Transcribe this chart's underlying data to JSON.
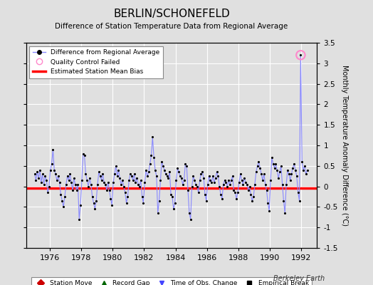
{
  "title": "BERLIN/SCHONEFELD",
  "subtitle": "Difference of Station Temperature Data from Regional Average",
  "ylabel": "Monthly Temperature Anomaly Difference (°C)",
  "xlim": [
    1974.5,
    1993.0
  ],
  "ylim": [
    -1.5,
    3.5
  ],
  "yticks": [
    -1.5,
    -1.0,
    -0.5,
    0.0,
    0.5,
    1.0,
    1.5,
    2.0,
    2.5,
    3.0,
    3.5
  ],
  "xticks": [
    1976,
    1978,
    1980,
    1982,
    1984,
    1986,
    1988,
    1990,
    1992
  ],
  "bias_level": -0.05,
  "line_color": "#8888ff",
  "bias_color": "#ff0000",
  "dot_color": "#000000",
  "qc_fail_x": 1991.958,
  "qc_fail_y": 3.2,
  "background_color": "#e0e0e0",
  "grid_color": "#ffffff",
  "watermark": "Berkeley Earth",
  "data_x": [
    1975.042,
    1975.125,
    1975.208,
    1975.292,
    1975.375,
    1975.458,
    1975.542,
    1975.625,
    1975.708,
    1975.792,
    1975.875,
    1975.958,
    1976.042,
    1976.125,
    1976.208,
    1976.292,
    1976.375,
    1976.458,
    1976.542,
    1976.625,
    1976.708,
    1976.792,
    1976.875,
    1976.958,
    1977.042,
    1977.125,
    1977.208,
    1977.292,
    1977.375,
    1977.458,
    1977.542,
    1977.625,
    1977.708,
    1977.792,
    1977.875,
    1977.958,
    1978.042,
    1978.125,
    1978.208,
    1978.292,
    1978.375,
    1978.458,
    1978.542,
    1978.625,
    1978.708,
    1978.792,
    1978.875,
    1978.958,
    1979.042,
    1979.125,
    1979.208,
    1979.292,
    1979.375,
    1979.458,
    1979.542,
    1979.625,
    1979.708,
    1979.792,
    1979.875,
    1979.958,
    1980.042,
    1980.125,
    1980.208,
    1980.292,
    1980.375,
    1980.458,
    1980.542,
    1980.625,
    1980.708,
    1980.792,
    1980.875,
    1980.958,
    1981.042,
    1981.125,
    1981.208,
    1981.292,
    1981.375,
    1981.458,
    1981.542,
    1981.625,
    1981.708,
    1981.792,
    1981.875,
    1981.958,
    1982.042,
    1982.125,
    1982.208,
    1982.292,
    1982.375,
    1982.458,
    1982.542,
    1982.625,
    1982.708,
    1982.792,
    1982.875,
    1982.958,
    1983.042,
    1983.125,
    1983.208,
    1983.292,
    1983.375,
    1983.458,
    1983.542,
    1983.625,
    1983.708,
    1983.792,
    1983.875,
    1983.958,
    1984.042,
    1984.125,
    1984.208,
    1984.292,
    1984.375,
    1984.458,
    1984.542,
    1984.625,
    1984.708,
    1984.792,
    1984.875,
    1984.958,
    1985.042,
    1985.125,
    1985.208,
    1985.292,
    1985.375,
    1985.458,
    1985.542,
    1985.625,
    1985.708,
    1985.792,
    1985.875,
    1985.958,
    1986.042,
    1986.125,
    1986.208,
    1986.292,
    1986.375,
    1986.458,
    1986.542,
    1986.625,
    1986.708,
    1986.792,
    1986.875,
    1986.958,
    1987.042,
    1987.125,
    1987.208,
    1987.292,
    1987.375,
    1987.458,
    1987.542,
    1987.625,
    1987.708,
    1987.792,
    1987.875,
    1987.958,
    1988.042,
    1988.125,
    1988.208,
    1988.292,
    1988.375,
    1988.458,
    1988.542,
    1988.625,
    1988.708,
    1988.792,
    1988.875,
    1988.958,
    1989.042,
    1989.125,
    1989.208,
    1989.292,
    1989.375,
    1989.458,
    1989.542,
    1989.625,
    1989.708,
    1989.792,
    1989.875,
    1989.958,
    1990.042,
    1990.125,
    1990.208,
    1990.292,
    1990.375,
    1990.458,
    1990.542,
    1990.625,
    1990.708,
    1990.792,
    1990.875,
    1990.958,
    1991.042,
    1991.125,
    1991.208,
    1991.292,
    1991.375,
    1991.458,
    1991.542,
    1991.625,
    1991.708,
    1991.792,
    1991.875,
    1991.958,
    1992.042,
    1992.125,
    1992.208,
    1992.292,
    1992.375
  ],
  "data_y": [
    0.3,
    0.15,
    0.35,
    0.2,
    0.4,
    0.1,
    0.3,
    0.05,
    0.25,
    0.15,
    -0.15,
    0.0,
    0.4,
    0.55,
    0.9,
    0.4,
    0.3,
    0.15,
    0.25,
    0.1,
    -0.2,
    -0.35,
    -0.5,
    -0.25,
    0.05,
    0.25,
    0.15,
    0.3,
    0.1,
    -0.1,
    0.2,
    0.05,
    -0.1,
    0.05,
    -0.8,
    -0.45,
    0.15,
    0.8,
    0.75,
    0.3,
    0.15,
    0.0,
    0.2,
    0.05,
    -0.25,
    -0.4,
    -0.55,
    -0.35,
    0.05,
    0.35,
    0.25,
    0.15,
    0.3,
    0.1,
    0.05,
    -0.1,
    0.1,
    -0.1,
    -0.3,
    -0.45,
    0.1,
    0.3,
    0.5,
    0.25,
    0.4,
    0.2,
    0.05,
    0.15,
    0.0,
    -0.15,
    -0.4,
    -0.25,
    0.15,
    0.3,
    0.25,
    0.15,
    0.3,
    0.1,
    0.2,
    0.05,
    0.0,
    0.15,
    -0.25,
    -0.4,
    0.1,
    0.4,
    0.25,
    0.35,
    0.55,
    0.75,
    1.2,
    0.7,
    0.4,
    0.25,
    -0.65,
    -0.35,
    0.15,
    0.6,
    0.5,
    0.4,
    0.3,
    0.25,
    0.2,
    0.35,
    -0.2,
    -0.25,
    -0.55,
    -0.4,
    0.15,
    0.45,
    0.35,
    0.25,
    0.2,
    0.05,
    0.15,
    0.55,
    0.5,
    -0.1,
    -0.65,
    -0.8,
    0.0,
    0.25,
    0.15,
    0.05,
    0.0,
    -0.15,
    0.15,
    0.3,
    0.35,
    0.2,
    -0.2,
    -0.35,
    0.05,
    0.25,
    0.15,
    0.1,
    0.25,
    0.1,
    0.2,
    0.35,
    0.25,
    0.0,
    -0.2,
    -0.3,
    0.05,
    0.15,
    0.1,
    0.0,
    0.15,
    0.05,
    0.15,
    0.25,
    -0.1,
    -0.15,
    -0.3,
    -0.15,
    0.1,
    0.3,
    0.15,
    0.05,
    0.2,
    0.1,
    0.05,
    -0.1,
    0.0,
    -0.2,
    -0.35,
    -0.25,
    0.05,
    0.35,
    0.5,
    0.6,
    0.45,
    0.3,
    0.15,
    0.3,
    0.05,
    -0.1,
    -0.4,
    -0.6,
    0.15,
    0.7,
    0.55,
    0.45,
    0.55,
    0.4,
    0.2,
    0.35,
    0.5,
    0.05,
    -0.35,
    -0.65,
    0.05,
    0.4,
    0.3,
    0.15,
    0.3,
    0.45,
    0.55,
    0.4,
    0.25,
    -0.15,
    -0.35,
    3.2,
    0.6,
    0.4,
    0.5,
    0.3,
    0.4
  ]
}
